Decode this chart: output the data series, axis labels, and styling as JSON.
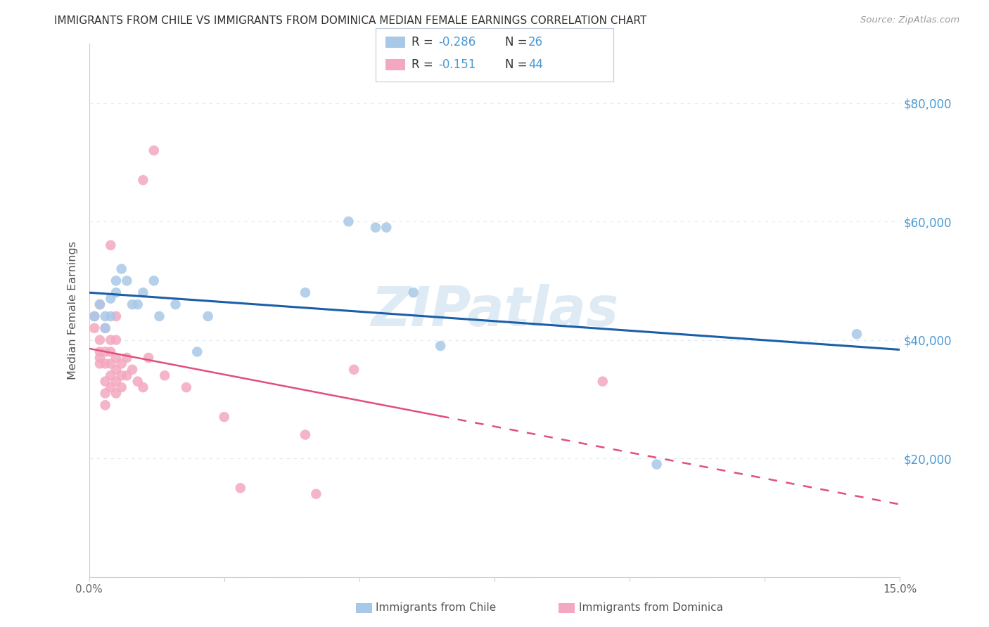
{
  "title": "IMMIGRANTS FROM CHILE VS IMMIGRANTS FROM DOMINICA MEDIAN FEMALE EARNINGS CORRELATION CHART",
  "source": "Source: ZipAtlas.com",
  "ylabel": "Median Female Earnings",
  "watermark": "ZIPatlas",
  "xlim": [
    0.0,
    0.15
  ],
  "ylim": [
    0,
    90000
  ],
  "xticks": [
    0.0,
    0.025,
    0.05,
    0.075,
    0.1,
    0.125,
    0.15
  ],
  "xticklabels": [
    "0.0%",
    "",
    "",
    "",
    "",
    "",
    "15.0%"
  ],
  "yticks": [
    0,
    20000,
    40000,
    60000,
    80000
  ],
  "yticklabels": [
    "",
    "$20,000",
    "$40,000",
    "$60,000",
    "$80,000"
  ],
  "chile_color": "#a8c8e8",
  "chile_line_color": "#1a5fa8",
  "dominica_color": "#f4a8c0",
  "dominica_line_color": "#e0507a",
  "grid_color": "#ddeaf5",
  "right_label_color": "#4a9ad4",
  "chile_scatter": [
    [
      0.001,
      44000
    ],
    [
      0.002,
      46000
    ],
    [
      0.003,
      44000
    ],
    [
      0.003,
      42000
    ],
    [
      0.004,
      47000
    ],
    [
      0.004,
      44000
    ],
    [
      0.005,
      50000
    ],
    [
      0.005,
      48000
    ],
    [
      0.006,
      52000
    ],
    [
      0.007,
      50000
    ],
    [
      0.008,
      46000
    ],
    [
      0.009,
      46000
    ],
    [
      0.01,
      48000
    ],
    [
      0.012,
      50000
    ],
    [
      0.013,
      44000
    ],
    [
      0.016,
      46000
    ],
    [
      0.02,
      38000
    ],
    [
      0.022,
      44000
    ],
    [
      0.04,
      48000
    ],
    [
      0.048,
      60000
    ],
    [
      0.053,
      59000
    ],
    [
      0.055,
      59000
    ],
    [
      0.06,
      48000
    ],
    [
      0.065,
      39000
    ],
    [
      0.105,
      19000
    ],
    [
      0.142,
      41000
    ]
  ],
  "dominica_scatter": [
    [
      0.001,
      44000
    ],
    [
      0.001,
      42000
    ],
    [
      0.002,
      46000
    ],
    [
      0.002,
      40000
    ],
    [
      0.002,
      38000
    ],
    [
      0.002,
      37000
    ],
    [
      0.002,
      36000
    ],
    [
      0.003,
      42000
    ],
    [
      0.003,
      38000
    ],
    [
      0.003,
      36000
    ],
    [
      0.003,
      33000
    ],
    [
      0.003,
      31000
    ],
    [
      0.003,
      29000
    ],
    [
      0.004,
      56000
    ],
    [
      0.004,
      40000
    ],
    [
      0.004,
      38000
    ],
    [
      0.004,
      36000
    ],
    [
      0.004,
      34000
    ],
    [
      0.004,
      32000
    ],
    [
      0.005,
      44000
    ],
    [
      0.005,
      40000
    ],
    [
      0.005,
      37000
    ],
    [
      0.005,
      35000
    ],
    [
      0.005,
      33000
    ],
    [
      0.005,
      31000
    ],
    [
      0.006,
      36000
    ],
    [
      0.006,
      34000
    ],
    [
      0.006,
      32000
    ],
    [
      0.007,
      37000
    ],
    [
      0.007,
      34000
    ],
    [
      0.008,
      35000
    ],
    [
      0.009,
      33000
    ],
    [
      0.01,
      32000
    ],
    [
      0.011,
      37000
    ],
    [
      0.014,
      34000
    ],
    [
      0.018,
      32000
    ],
    [
      0.025,
      27000
    ],
    [
      0.028,
      15000
    ],
    [
      0.04,
      24000
    ],
    [
      0.042,
      14000
    ],
    [
      0.049,
      35000
    ],
    [
      0.095,
      33000
    ],
    [
      0.012,
      72000
    ],
    [
      0.01,
      67000
    ]
  ],
  "background_color": "#ffffff",
  "fig_width": 14.06,
  "fig_height": 8.92
}
